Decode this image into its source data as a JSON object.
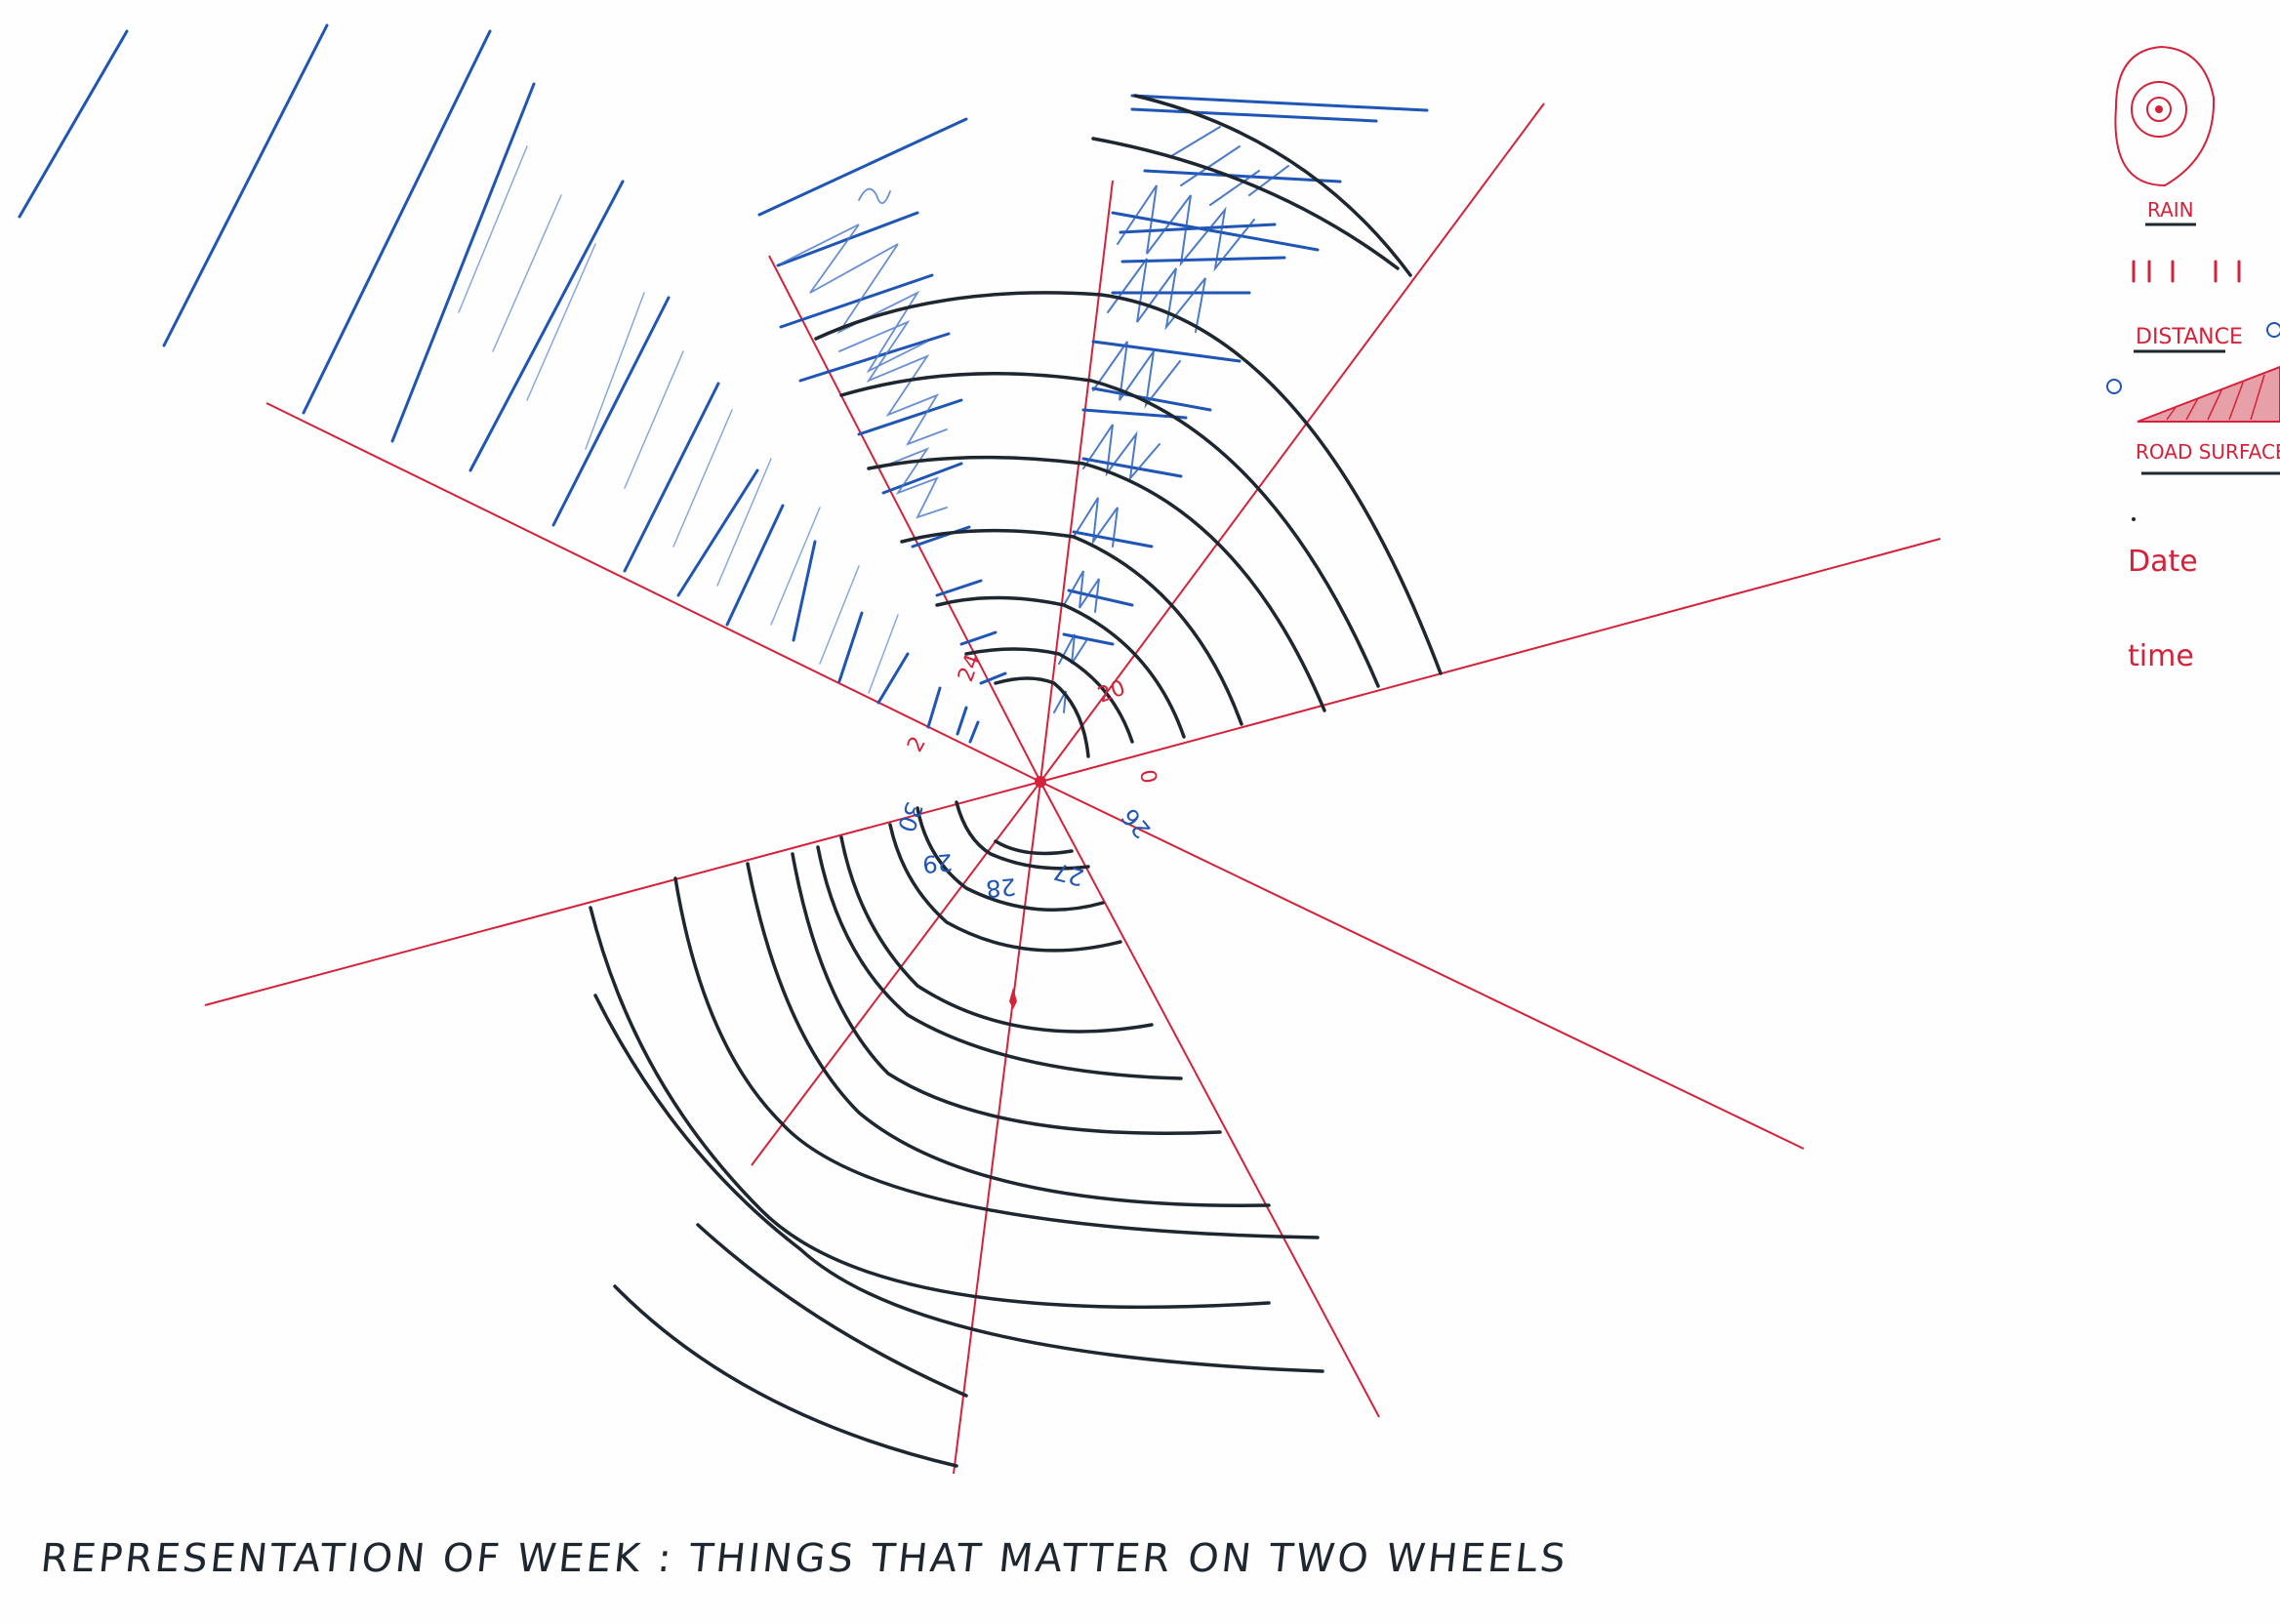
{
  "caption": "REPRESENTATION OF WEEK : THINGS THAT MATTER ON TWO WHEELS",
  "legend": {
    "rain_label": "RAIN",
    "distance_label": "DISTANCE",
    "road_surface_label": "ROAD SURFACE",
    "date_label": "Date",
    "time_label": "time"
  },
  "axis_labels": {
    "upper_left": "2",
    "upper_center": "24",
    "upper_right": "20",
    "right": "0"
  },
  "date_labels": [
    "30",
    "29",
    "28",
    "27",
    "26"
  ],
  "colors": {
    "axis": "#d4223a",
    "rain": "#1f55b5",
    "rings": "#1e2630",
    "legend": "#d4223a"
  }
}
